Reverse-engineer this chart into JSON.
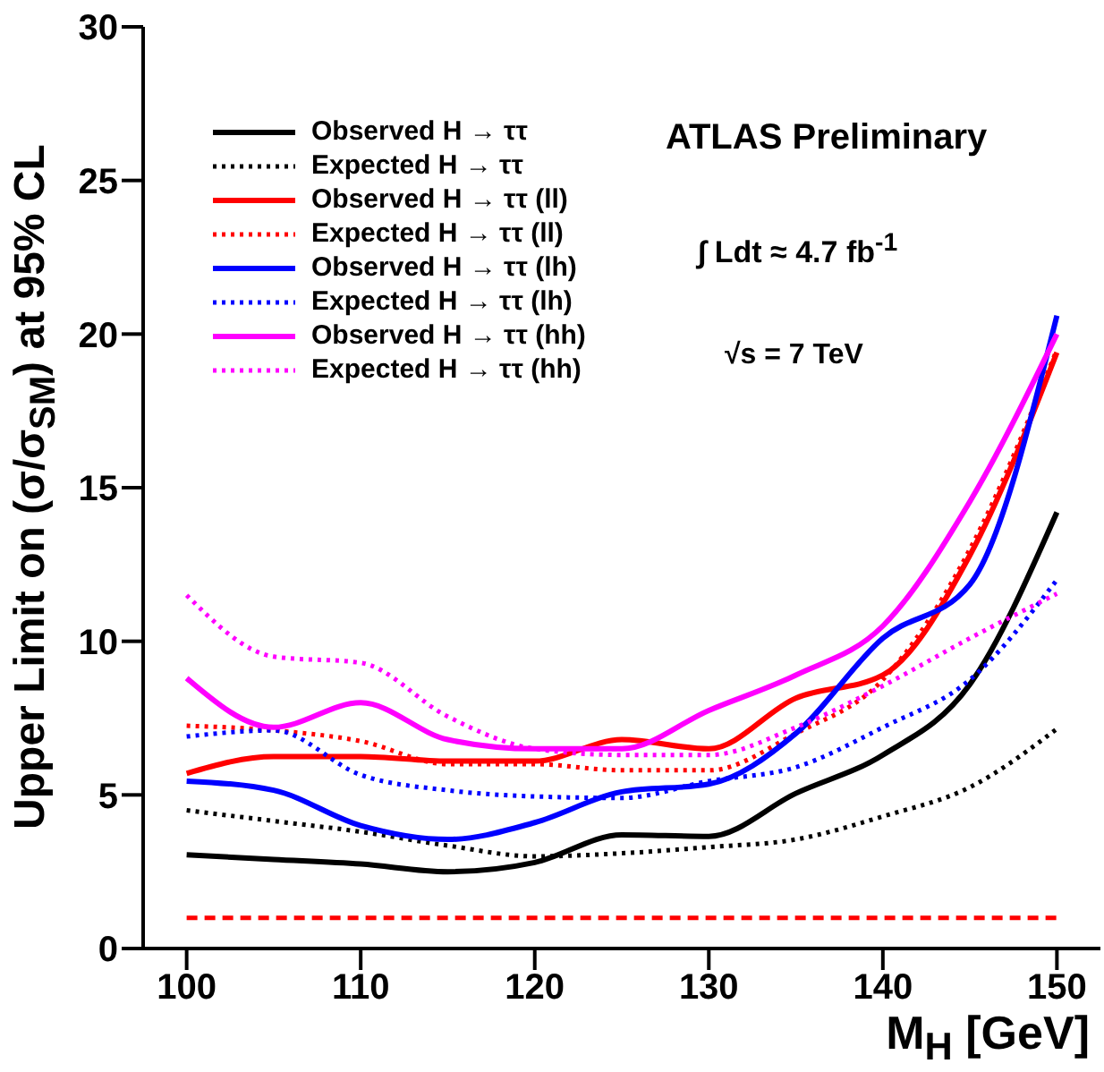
{
  "chart_data": {
    "type": "line",
    "xlabel": "M$_{H}$ [GeV]",
    "ylabel": "Upper Limit on (σ/σ$_{SM}$) at 95% CL",
    "xlim": [
      97.5,
      152.5
    ],
    "ylim": [
      0,
      30
    ],
    "xticks": [
      100,
      110,
      120,
      130,
      140,
      150
    ],
    "yticks": [
      0,
      5,
      10,
      15,
      20,
      25,
      30
    ],
    "grid": false,
    "legend": "top left",
    "marker": "none",
    "annotations": [
      "ATLAS Preliminary",
      "∫ Ldt ≈ 4.7 fb$^{-1}$",
      "√s = 7 TeV"
    ],
    "x": [
      100,
      105,
      110,
      115,
      120,
      125,
      130,
      135,
      140,
      145,
      150
    ],
    "series": [
      {
        "name": "Observed H → ττ",
        "color": "#000000",
        "line_style": "solid",
        "values": [
          3.05,
          2.9,
          2.75,
          2.5,
          2.8,
          3.7,
          3.65,
          5.05,
          6.3,
          8.6,
          14.2
        ]
      },
      {
        "name": "Expected H → ττ",
        "color": "#000000",
        "line_style": "dotted",
        "values": [
          4.5,
          4.15,
          3.8,
          3.35,
          3.0,
          3.1,
          3.3,
          3.55,
          4.3,
          5.25,
          7.15
        ]
      },
      {
        "name": "Observed H → ττ (ll)",
        "color": "#ff0000",
        "line_style": "solid",
        "values": [
          5.7,
          6.25,
          6.25,
          6.1,
          6.1,
          6.8,
          6.5,
          8.15,
          8.9,
          12.8,
          19.4
        ]
      },
      {
        "name": "Expected H → ττ (ll)",
        "color": "#ff0000",
        "line_style": "dotted",
        "values": [
          7.25,
          7.1,
          6.75,
          6.0,
          6.0,
          5.8,
          5.8,
          7.0,
          8.75,
          13.0,
          19.5
        ]
      },
      {
        "name": "Observed H → ττ (lh)",
        "color": "#0000ff",
        "line_style": "solid",
        "values": [
          5.45,
          5.15,
          4.0,
          3.55,
          4.1,
          5.1,
          5.35,
          7.0,
          10.1,
          11.85,
          20.6
        ]
      },
      {
        "name": "Expected H → ττ (lh)",
        "color": "#0000ff",
        "line_style": "dotted",
        "values": [
          6.9,
          7.1,
          5.65,
          5.15,
          4.95,
          4.9,
          5.45,
          5.9,
          7.2,
          8.75,
          12.0
        ]
      },
      {
        "name": "Observed H → ττ (hh)",
        "color": "#ff00ff",
        "line_style": "solid",
        "values": [
          8.8,
          7.2,
          8.0,
          6.8,
          6.5,
          6.5,
          7.75,
          8.9,
          10.5,
          14.55,
          20.0
        ]
      },
      {
        "name": "Expected H → ττ (hh)",
        "color": "#ff00ff",
        "line_style": "dotted",
        "values": [
          11.5,
          9.5,
          9.3,
          7.55,
          6.5,
          6.3,
          6.3,
          7.2,
          8.55,
          10.1,
          11.55
        ]
      },
      {
        "color": "#ff0000",
        "line_style": "dashed",
        "x": [
          100,
          150
        ],
        "values": [
          1,
          1
        ]
      }
    ]
  }
}
